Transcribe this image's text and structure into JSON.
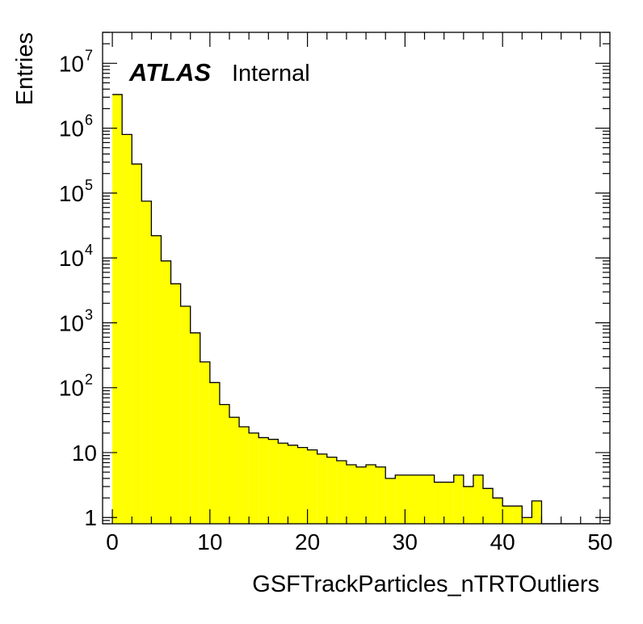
{
  "chart_data": {
    "type": "histogram",
    "title": "",
    "xlabel": "GSFTrackParticles_nTRTOutliers",
    "ylabel": "Entries",
    "xlim": [
      -1,
      51
    ],
    "ylim": [
      0.8,
      30000000
    ],
    "yscale": "log",
    "grid": false,
    "fill_color": "#ffff00",
    "line_color": "#000000",
    "x_ticks": [
      "0",
      "10",
      "20",
      "30",
      "40",
      "50"
    ],
    "y_ticks": [
      {
        "value": 1,
        "base": "1",
        "exp": ""
      },
      {
        "value": 10,
        "base": "10",
        "exp": ""
      },
      {
        "value": 100,
        "base": "10",
        "exp": "2"
      },
      {
        "value": 1000,
        "base": "10",
        "exp": "3"
      },
      {
        "value": 10000,
        "base": "10",
        "exp": "4"
      },
      {
        "value": 100000,
        "base": "10",
        "exp": "5"
      },
      {
        "value": 1000000,
        "base": "10",
        "exp": "6"
      },
      {
        "value": 10000000,
        "base": "10",
        "exp": "7"
      }
    ],
    "bin_start": 0,
    "bin_width": 1,
    "values": [
      3300000,
      800000,
      280000,
      75000,
      22000,
      9000,
      4000,
      1800,
      700,
      250,
      120,
      55,
      35,
      25,
      20,
      17,
      16,
      14,
      13,
      12,
      11,
      9.5,
      8.5,
      7.5,
      6.5,
      6,
      6.5,
      6,
      4,
      4.5,
      4.5,
      4.5,
      4.5,
      3.5,
      3.5,
      4.5,
      3,
      4.5,
      2.8,
      2,
      1.5,
      1.5,
      1,
      1.8,
      0,
      0,
      0,
      0,
      0,
      0
    ]
  },
  "label": {
    "atlas": "ATLAS",
    "internal": "Internal"
  }
}
